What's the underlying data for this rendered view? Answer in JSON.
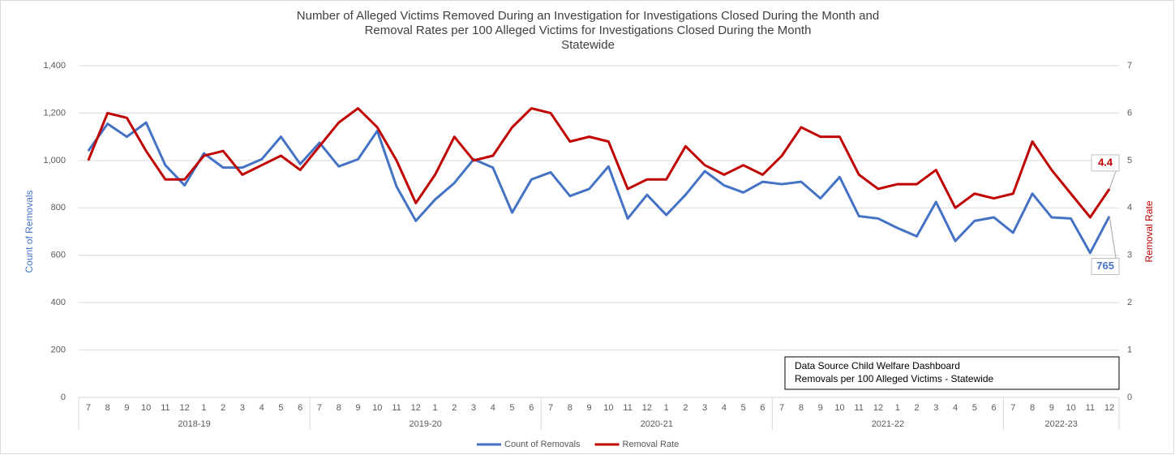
{
  "chart_data": {
    "type": "line",
    "title": [
      "Number of Alleged Victims Removed During an Investigation for Investigations Closed During the Month and",
      "Removal Rates per 100 Alleged Victims for Investigations Closed During the Month",
      "Statewide"
    ],
    "ylabel": "Count of Removals",
    "y2label": "Removal Rate",
    "categories": [
      "7",
      "8",
      "9",
      "10",
      "11",
      "12",
      "1",
      "2",
      "3",
      "4",
      "5",
      "6",
      "7",
      "8",
      "9",
      "10",
      "11",
      "12",
      "1",
      "2",
      "3",
      "4",
      "5",
      "6",
      "7",
      "8",
      "9",
      "10",
      "11",
      "12",
      "1",
      "2",
      "3",
      "4",
      "5",
      "6",
      "7",
      "8",
      "9",
      "10",
      "11",
      "12",
      "1",
      "2",
      "3",
      "4",
      "5",
      "6",
      "7",
      "8",
      "9",
      "10",
      "11",
      "12"
    ],
    "category_groups": [
      {
        "label": "2018-19",
        "count": 12
      },
      {
        "label": "2019-20",
        "count": 12
      },
      {
        "label": "2020-21",
        "count": 12
      },
      {
        "label": "2021-22",
        "count": 12
      },
      {
        "label": "2022-23",
        "count": 6
      }
    ],
    "series": [
      {
        "name": "Count of Removals",
        "color": "#4472c4",
        "axis": "y",
        "label_last": true,
        "values": [
          1040,
          1155,
          1100,
          1160,
          980,
          895,
          1030,
          970,
          970,
          1005,
          1100,
          985,
          1075,
          975,
          1005,
          1125,
          890,
          745,
          835,
          905,
          1005,
          970,
          780,
          920,
          950,
          850,
          880,
          975,
          755,
          855,
          770,
          855,
          955,
          895,
          865,
          910,
          900,
          910,
          840,
          930,
          765,
          755,
          715,
          680,
          825,
          660,
          745,
          760,
          695,
          860,
          760,
          755,
          610,
          765
        ]
      },
      {
        "name": "Removal Rate",
        "color": "#c00000",
        "axis": "y2",
        "label_last": true,
        "values": [
          5.0,
          6.0,
          5.9,
          5.2,
          4.6,
          4.6,
          5.1,
          5.2,
          4.7,
          4.9,
          5.1,
          4.8,
          5.3,
          5.8,
          6.1,
          5.7,
          5.0,
          4.1,
          4.7,
          5.5,
          5.0,
          5.1,
          5.7,
          6.1,
          6.0,
          5.4,
          5.5,
          5.4,
          4.4,
          4.6,
          4.6,
          5.3,
          4.9,
          4.7,
          4.9,
          4.7,
          5.1,
          5.7,
          5.5,
          5.5,
          4.7,
          4.4,
          4.5,
          4.5,
          4.8,
          4.0,
          4.3,
          4.2,
          4.3,
          5.4,
          4.8,
          4.3,
          3.8,
          4.4
        ]
      }
    ],
    "ylim": [
      0,
      1400
    ],
    "yticks": [
      0,
      200,
      400,
      600,
      800,
      {
        "value": 1000,
        "label": "1,000"
      },
      {
        "value": 1200,
        "label": "1,200"
      },
      {
        "value": 1400,
        "label": "1,400"
      }
    ],
    "y2lim": [
      0,
      7
    ],
    "y2ticks": [
      0,
      1,
      2,
      3,
      4,
      5,
      6,
      7
    ],
    "grid": true,
    "legend": "bottom",
    "annotation": [
      "Data Source Child Welfare Dashboard",
      "Removals per 100 Alleged Victims - Statewide"
    ]
  }
}
